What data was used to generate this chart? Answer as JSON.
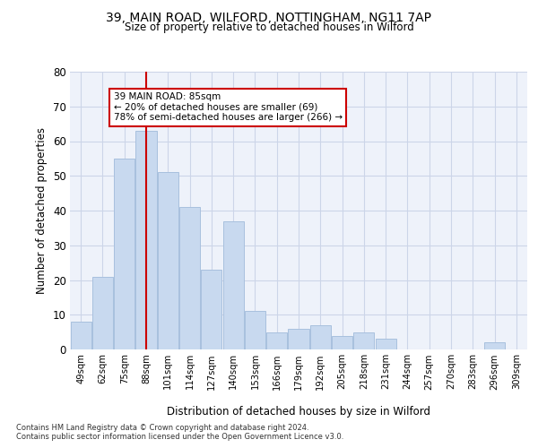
{
  "title1": "39, MAIN ROAD, WILFORD, NOTTINGHAM, NG11 7AP",
  "title2": "Size of property relative to detached houses in Wilford",
  "xlabel": "Distribution of detached houses by size in Wilford",
  "ylabel": "Number of detached properties",
  "categories": [
    "49sqm",
    "62sqm",
    "75sqm",
    "88sqm",
    "101sqm",
    "114sqm",
    "127sqm",
    "140sqm",
    "153sqm",
    "166sqm",
    "179sqm",
    "192sqm",
    "205sqm",
    "218sqm",
    "231sqm",
    "244sqm",
    "257sqm",
    "270sqm",
    "283sqm",
    "296sqm",
    "309sqm"
  ],
  "values": [
    8,
    21,
    55,
    63,
    51,
    41,
    23,
    37,
    11,
    5,
    6,
    7,
    4,
    5,
    3,
    0,
    0,
    0,
    0,
    2,
    0
  ],
  "bar_color": "#c8d9ef",
  "bar_edge_color": "#a8c0de",
  "vline_x_index": 3,
  "vline_color": "#cc0000",
  "annotation_text": "39 MAIN ROAD: 85sqm\n← 20% of detached houses are smaller (69)\n78% of semi-detached houses are larger (266) →",
  "annotation_box_color": "#ffffff",
  "annotation_box_edge": "#cc0000",
  "grid_color": "#ccd5e8",
  "background_color": "#eef2fa",
  "ylim": [
    0,
    80
  ],
  "yticks": [
    0,
    10,
    20,
    30,
    40,
    50,
    60,
    70,
    80
  ],
  "footer1": "Contains HM Land Registry data © Crown copyright and database right 2024.",
  "footer2": "Contains public sector information licensed under the Open Government Licence v3.0."
}
